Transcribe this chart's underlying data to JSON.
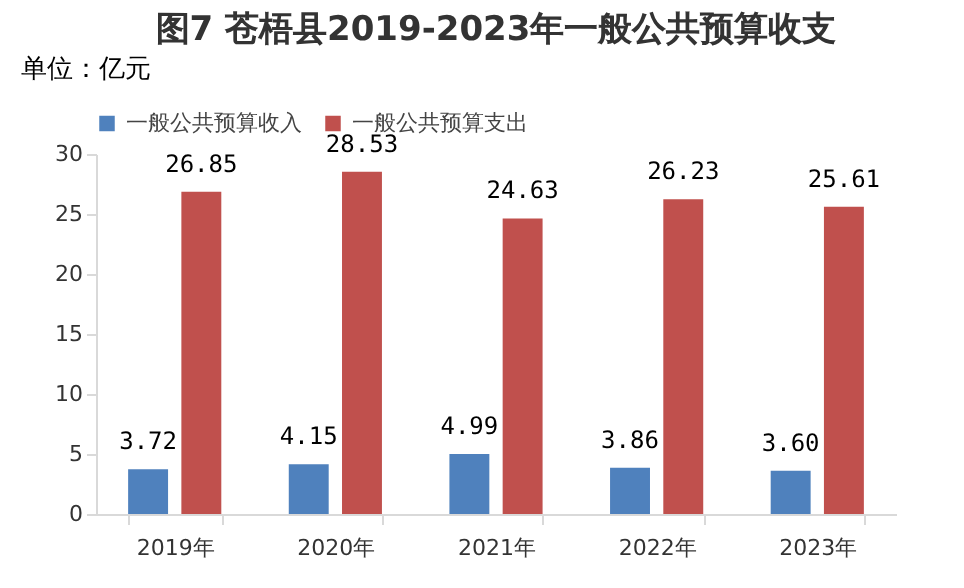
{
  "chart_data": {
    "type": "bar",
    "title": "图7  苍梧县2019-2023年一般公共预算收支",
    "ylabel": "单位：亿元",
    "categories": [
      "2019年",
      "2020年",
      "2021年",
      "2022年",
      "2023年"
    ],
    "series": [
      {
        "name": "一般公共预算收入",
        "color": "#4f81bd",
        "values": [
          3.72,
          4.15,
          4.99,
          3.86,
          3.6
        ],
        "value_labels": [
          "3.72",
          "4.15",
          "4.99",
          "3.86",
          "3.60"
        ]
      },
      {
        "name": "一般公共预算支出",
        "color": "#c0504d",
        "values": [
          26.85,
          28.53,
          24.63,
          26.23,
          25.61
        ],
        "value_labels": [
          "26.85",
          "28.53",
          "24.63",
          "26.23",
          "25.61"
        ]
      }
    ],
    "ylim": [
      0,
      30
    ],
    "yticks": [
      0,
      5,
      10,
      15,
      20,
      25,
      30
    ],
    "grid": false,
    "legend": "top"
  }
}
